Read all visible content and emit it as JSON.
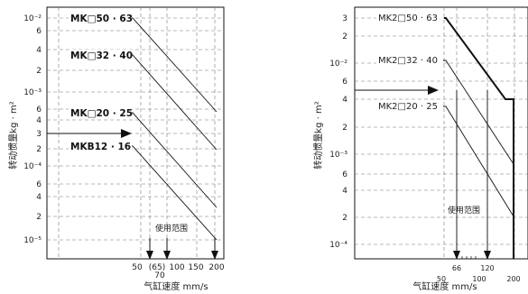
{
  "chart_data": [
    {
      "type": "line",
      "xlabel": "气缸速度 mm/s",
      "ylabel": "转动惯量kg · m²",
      "range_label": "使用范围",
      "x_ticks": [
        "50",
        "(65)",
        "100",
        "150",
        "200"
      ],
      "x_tick_extra": "70",
      "y_ticks": [
        "10⁻²",
        "6",
        "4",
        "2",
        "10⁻³",
        "6",
        "4",
        "3",
        "2",
        "10⁻⁴",
        "6",
        "4",
        "2",
        "10⁻⁵"
      ],
      "arrow_speeds": [
        65,
        70,
        150
      ],
      "series": [
        {
          "name": "MK□50 · 63"
        },
        {
          "name": "MK□32 · 40"
        },
        {
          "name": "MK□20 · 25"
        },
        {
          "name": "MKB12 · 16"
        }
      ]
    },
    {
      "type": "line",
      "xlabel": "气缸速度 mm/s",
      "ylabel": "转动惯量kg · m²",
      "range_label": "使用范围",
      "x_ticks": [
        "50",
        "66",
        "100",
        "120",
        "200"
      ],
      "y_ticks": [
        "3",
        "2",
        "10⁻²",
        "6",
        "4",
        "2",
        "10⁻³",
        "6",
        "4",
        "2",
        "10⁻⁴"
      ],
      "arrow_speeds": [
        66,
        120
      ],
      "series": [
        {
          "name": "MK2□50 · 63"
        },
        {
          "name": "MK2□32 · 40"
        },
        {
          "name": "MK2□20 · 25"
        }
      ]
    }
  ]
}
